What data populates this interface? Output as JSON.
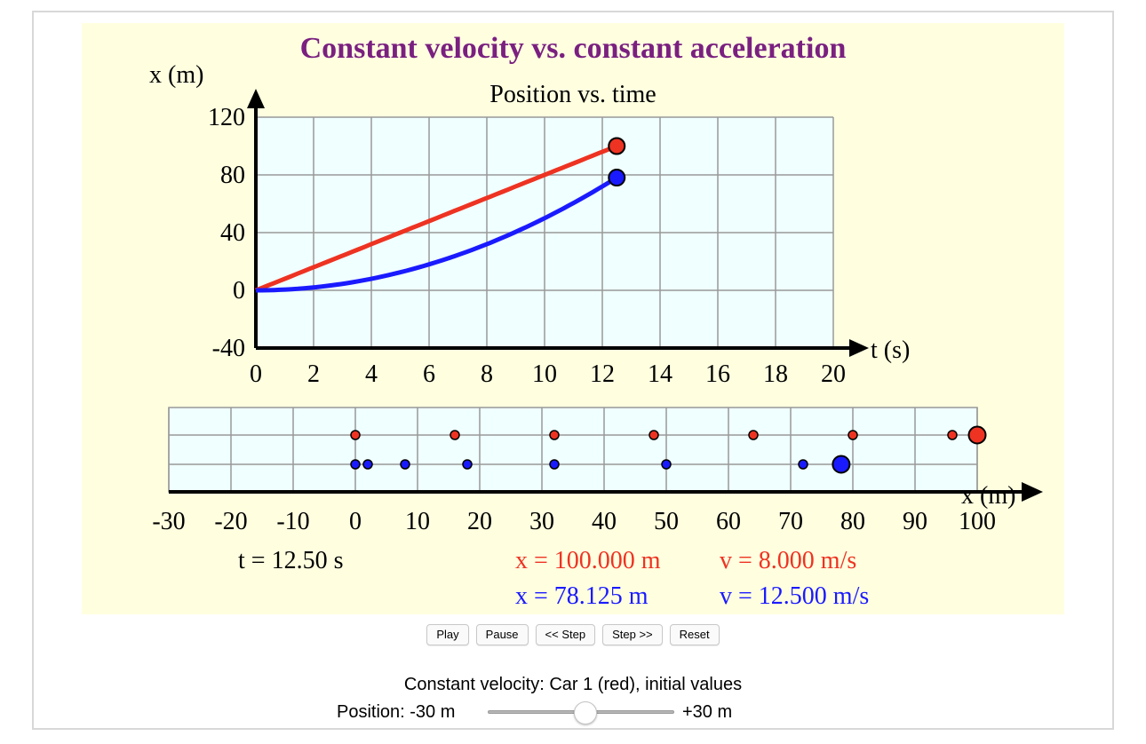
{
  "sim": {
    "title": "Constant velocity vs. constant acceleration",
    "background": "#ffffe0",
    "plot_background": "#f0ffff",
    "car1_color": "#ee3322",
    "car2_color": "#1a1aff",
    "title_color": "#7a2080"
  },
  "chart_data": [
    {
      "type": "line",
      "title": "Position vs. time",
      "xlabel": "t (s)",
      "ylabel": "x (m)",
      "xlim": [
        0,
        20
      ],
      "ylim": [
        -40,
        120
      ],
      "x_ticks": [
        0,
        2,
        4,
        6,
        8,
        10,
        12,
        14,
        16,
        18,
        20
      ],
      "y_ticks": [
        -40,
        0,
        40,
        80,
        120
      ],
      "grid": true,
      "series": [
        {
          "color": "#ee3322",
          "kind": "constant-velocity",
          "x0": 0,
          "v0": 8,
          "a": 0,
          "t_end": 12.5
        },
        {
          "color": "#1a1aff",
          "kind": "constant-acceleration",
          "x0": 0,
          "v0": 0,
          "a": 1,
          "t_end": 12.5
        }
      ]
    },
    {
      "type": "scatter",
      "title": "",
      "xlabel": "x (m)",
      "xlim": [
        -30,
        100
      ],
      "x_ticks": [
        -30,
        -20,
        -10,
        0,
        10,
        20,
        30,
        40,
        50,
        60,
        70,
        80,
        90,
        100
      ],
      "grid": true,
      "series": [
        {
          "color": "#ee3322",
          "trail": [
            0,
            16,
            32,
            48,
            64,
            80,
            96
          ],
          "current": 100
        },
        {
          "color": "#1a1aff",
          "trail": [
            0,
            2,
            8,
            18,
            32,
            50,
            72
          ],
          "current": 78.125
        }
      ]
    }
  ],
  "readout": {
    "time": "t = 12.50 s",
    "car1_x": "x = 100.000 m",
    "car1_v": "v = 8.000 m/s",
    "car2_x": "x = 78.125 m",
    "car2_v": "v = 12.500 m/s"
  },
  "controls": {
    "play": "Play",
    "pause": "Pause",
    "step_back": "<< Step",
    "step_forward": "Step >>",
    "reset": "Reset"
  },
  "panel": {
    "title": "Constant velocity: Car 1 (red), initial values",
    "slider_label": "Position: -30 m",
    "slider_max_label": "+30 m",
    "slider_value": 0
  }
}
